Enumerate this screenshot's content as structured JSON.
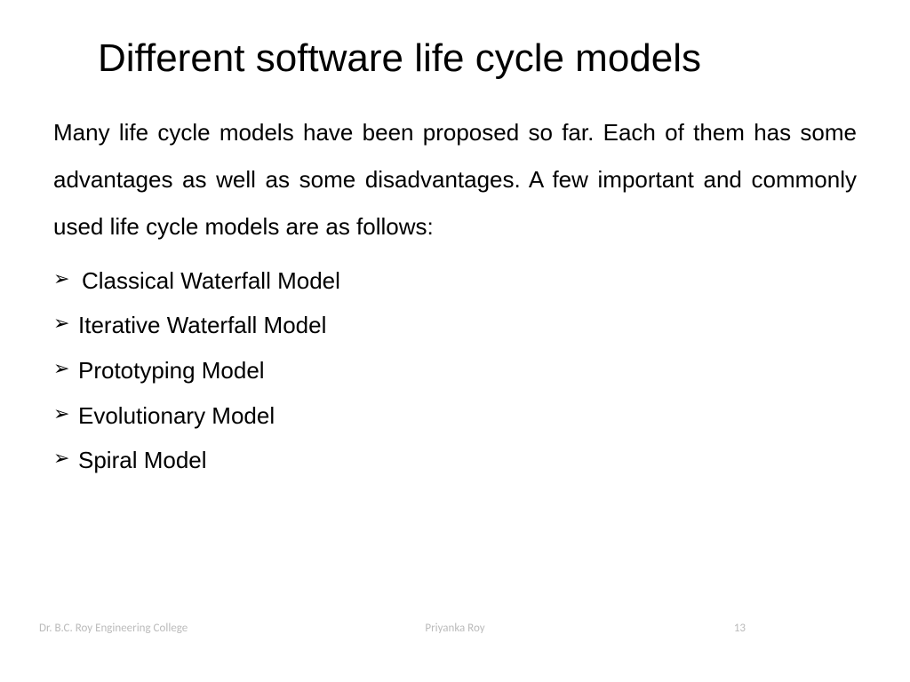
{
  "title": "Different software life cycle models",
  "body": "Many life cycle models have been proposed so far. Each of them has some advantages as well as some disadvantages. A few important and commonly used life cycle models are as follows:",
  "bullets": {
    "item1": "Classical Waterfall Model",
    "item2": "Iterative Waterfall Model",
    "item3": "Prototyping Model",
    "item4": "Evolutionary Model",
    "item5": "Spiral Model"
  },
  "bullet_glyph": "➢",
  "footer": {
    "left": "Dr. B.C. Roy Engineering College",
    "center": "Priyanka Roy",
    "page": "13"
  },
  "colors": {
    "background": "#ffffff",
    "text": "#000000",
    "footer_text": "#bbbbbb"
  },
  "fonts": {
    "title_size": 44,
    "body_size": 26,
    "footer_size": 13
  }
}
